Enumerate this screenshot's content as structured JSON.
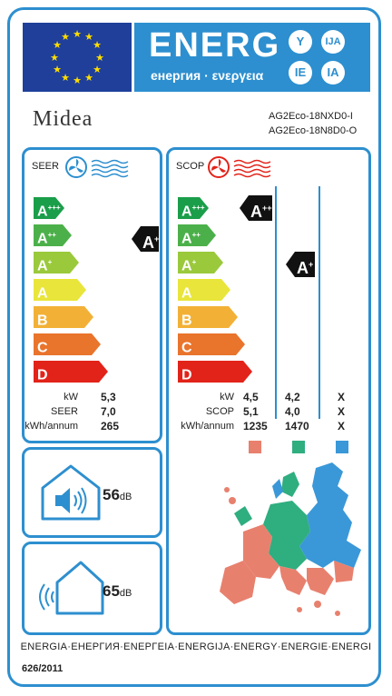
{
  "header": {
    "energy_title": "ENERG",
    "energy_subtitle": "енергия · ενεργεια",
    "languages": [
      "Y",
      "IJA",
      "IE",
      "IA"
    ]
  },
  "brand": "Midea",
  "models": [
    "AG2Eco-18NXD0-I",
    "AG2Eco-18N8D0-O"
  ],
  "classes": [
    "A+++",
    "A++",
    "A+",
    "A",
    "B",
    "C",
    "D"
  ],
  "class_display": [
    {
      "letter": "A",
      "plus": "+++"
    },
    {
      "letter": "A",
      "plus": "++"
    },
    {
      "letter": "A",
      "plus": "+"
    },
    {
      "letter": "A",
      "plus": ""
    },
    {
      "letter": "B",
      "plus": ""
    },
    {
      "letter": "C",
      "plus": ""
    },
    {
      "letter": "D",
      "plus": ""
    }
  ],
  "class_colors": [
    "#1a9e4a",
    "#4cb04a",
    "#9ac93c",
    "#e9e53a",
    "#f2b136",
    "#e9742c",
    "#e2231a"
  ],
  "cooling": {
    "label": "SEER",
    "rating": {
      "letter": "A",
      "plus": "++"
    },
    "values": [
      {
        "unit": "kW",
        "value": "5,3"
      },
      {
        "unit": "SEER",
        "value": "7,0"
      },
      {
        "unit": "kWh/annum",
        "value": "265"
      }
    ]
  },
  "heating": {
    "label": "SCOP",
    "ratings": [
      {
        "letter": "A",
        "plus": "+++",
        "zone": "warmer"
      },
      {
        "letter": "A",
        "plus": "+",
        "zone": "average"
      }
    ],
    "units": [
      "kW",
      "SCOP",
      "kWh/annum"
    ],
    "columns": [
      [
        "4,5",
        "5,1",
        "1235"
      ],
      [
        "4,2",
        "4,0",
        "1470"
      ],
      [
        "X",
        "X",
        "X"
      ]
    ],
    "zone_colors": [
      "#e8806e",
      "#2fae80",
      "#3a98d8"
    ]
  },
  "noise": {
    "indoor": {
      "value": "56",
      "unit": "dB"
    },
    "outdoor": {
      "value": "65",
      "unit": "dB"
    }
  },
  "footer": "ENERGIA·ЕНЕРГИЯ·ΕΝΕΡΓΕΙΑ·ENERGIJA·ENERGY·ENERGIE·ENERGI",
  "regulation": "626/2011",
  "colors": {
    "frame": "#2d8fcf",
    "eu_blue": "#1f3f9a",
    "eu_star": "#ffdd00"
  }
}
